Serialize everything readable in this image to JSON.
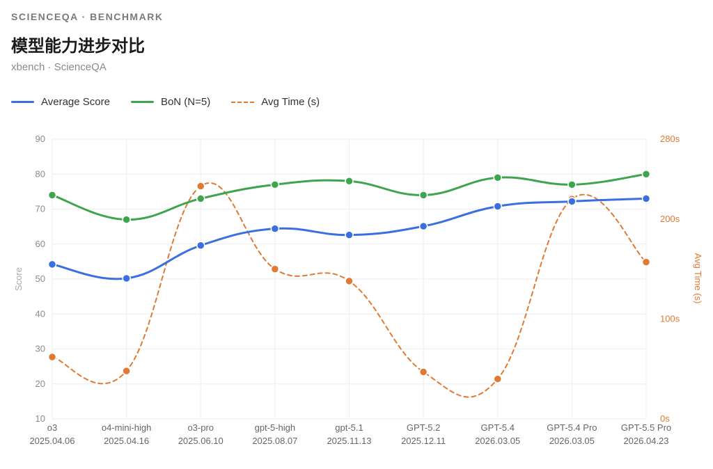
{
  "header": {
    "eyebrow": "SCIENCEQA · BENCHMARK",
    "title": "模型能力进步对比",
    "subtitle": "xbench · ScienceQA"
  },
  "colors": {
    "average": "#3b6fe0",
    "bon": "#3ea44e",
    "time": "#e07a33",
    "grid": "#eeeeee",
    "tick": "#8a8a8a"
  },
  "legend": [
    {
      "label": "Average Score",
      "style": "solid",
      "color": "#3b6fe0"
    },
    {
      "label": "BoN (N=5)",
      "style": "solid",
      "color": "#3ea44e"
    },
    {
      "label": "Avg Time (s)",
      "style": "dashed",
      "color": "#e07a33"
    }
  ],
  "chart_data": {
    "type": "line",
    "categories": [
      [
        "o3",
        "2025.04.06"
      ],
      [
        "o4-mini-high",
        "2025.04.16"
      ],
      [
        "o3-pro",
        "2025.06.10"
      ],
      [
        "gpt-5-high",
        "2025.08.07"
      ],
      [
        "gpt-5.1",
        "2025.11.13"
      ],
      [
        "GPT-5.2",
        "2025.12.11"
      ],
      [
        "GPT-5.4",
        "2026.03.05"
      ],
      [
        "GPT-5.4 Pro",
        "2026.03.05"
      ],
      [
        "GPT-5.5 Pro",
        "2026.04.23"
      ]
    ],
    "series": [
      {
        "name": "Average Score",
        "axis": "left",
        "values": [
          54.2,
          50.2,
          59.6,
          64.4,
          62.6,
          65.1,
          70.8,
          72.2,
          73.0
        ]
      },
      {
        "name": "BoN (N=5)",
        "axis": "left",
        "values": [
          74,
          67,
          73,
          77,
          78,
          74,
          79,
          77,
          80
        ]
      },
      {
        "name": "Avg Time (s)",
        "axis": "right",
        "values": [
          62,
          48,
          233,
          150,
          138,
          47,
          40,
          220,
          157
        ]
      }
    ],
    "ylabel": "Score",
    "ylabel_right": "Avg Time (s)",
    "ylim": [
      10,
      90
    ],
    "yticks": [
      "90",
      "80",
      "70",
      "60",
      "50",
      "40",
      "30",
      "20",
      "10"
    ],
    "ylim_right": [
      0,
      280
    ],
    "yticks_right": [
      "280s",
      "200s",
      "100s",
      "0s"
    ],
    "grid": true,
    "legend_position": "top-left"
  }
}
